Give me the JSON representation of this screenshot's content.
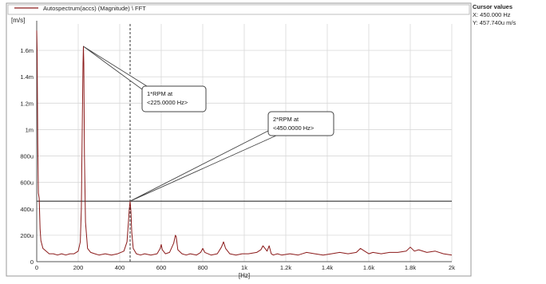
{
  "cursor_panel": {
    "title": "Cursor values",
    "x_readout": "X: 450.000 Hz",
    "y_readout": "Y: 457.740u m/s"
  },
  "chart_data": {
    "type": "line",
    "legend": {
      "label": "Autospectrum(accs) (Magnitude) \\ FFT",
      "placement": "top"
    },
    "xlabel": "[Hz]",
    "ylabel": "[m/s]",
    "xlim": [
      0,
      2000
    ],
    "ylim": [
      0,
      0.0018
    ],
    "grid": true,
    "x_ticks": [
      {
        "v": 0,
        "label": "0"
      },
      {
        "v": 200,
        "label": "200"
      },
      {
        "v": 400,
        "label": "400"
      },
      {
        "v": 600,
        "label": "600"
      },
      {
        "v": 800,
        "label": "800"
      },
      {
        "v": 1000,
        "label": "1k"
      },
      {
        "v": 1200,
        "label": "1.2k"
      },
      {
        "v": 1400,
        "label": "1.4k"
      },
      {
        "v": 1600,
        "label": "1.6k"
      },
      {
        "v": 1800,
        "label": "1.8k"
      },
      {
        "v": 2000,
        "label": "2k"
      }
    ],
    "y_ticks": [
      {
        "v": 0,
        "label": "0"
      },
      {
        "v": 0.0002,
        "label": "200u"
      },
      {
        "v": 0.0004,
        "label": "400u"
      },
      {
        "v": 0.0006,
        "label": "600u"
      },
      {
        "v": 0.0008,
        "label": "800u"
      },
      {
        "v": 0.001,
        "label": "1m"
      },
      {
        "v": 0.0012,
        "label": "1.2m"
      },
      {
        "v": 0.0014,
        "label": "1.4m"
      },
      {
        "v": 0.0016,
        "label": "1.6m"
      }
    ],
    "series": [
      {
        "color": "#8b1a1a",
        "x": [
          0,
          2,
          5,
          8,
          12,
          16,
          20,
          30,
          45,
          60,
          80,
          100,
          120,
          140,
          160,
          180,
          200,
          210,
          215,
          220,
          223,
          225,
          227,
          230,
          235,
          245,
          260,
          280,
          300,
          330,
          360,
          390,
          420,
          435,
          442,
          446,
          450,
          454,
          458,
          465,
          480,
          500,
          520,
          550,
          580,
          595,
          600,
          605,
          620,
          640,
          660,
          668,
          672,
          680,
          700,
          720,
          740,
          770,
          790,
          800,
          810,
          840,
          870,
          890,
          900,
          910,
          930,
          960,
          990,
          1020,
          1060,
          1080,
          1090,
          1100,
          1110,
          1120,
          1125,
          1130,
          1140,
          1160,
          1180,
          1220,
          1260,
          1300,
          1340,
          1380,
          1420,
          1460,
          1500,
          1540,
          1560,
          1580,
          1600,
          1620,
          1660,
          1700,
          1740,
          1780,
          1800,
          1820,
          1840,
          1880,
          1920,
          1960,
          2000
        ],
        "values": [
          0.00175,
          0.0016,
          0.0009,
          0.00052,
          0.00048,
          0.00025,
          0.00016,
          0.0001,
          8e-05,
          6e-05,
          6e-05,
          5e-05,
          6e-05,
          5e-05,
          6e-05,
          6e-05,
          8e-05,
          0.00015,
          0.0004,
          0.0011,
          0.0015,
          0.00163,
          0.0015,
          0.0008,
          0.0003,
          0.0001,
          7e-05,
          6e-05,
          5e-05,
          6e-05,
          5e-05,
          6e-05,
          8e-05,
          0.00015,
          0.0003,
          0.0004,
          0.000458,
          0.00038,
          0.00022,
          0.0001,
          6e-05,
          5e-05,
          6e-05,
          5e-05,
          6e-05,
          0.0001,
          0.00013,
          9e-05,
          6e-05,
          7e-05,
          0.00014,
          0.0002,
          0.00019,
          9e-05,
          6e-05,
          5e-05,
          6e-05,
          5e-05,
          7e-05,
          0.0001,
          7e-05,
          5e-05,
          6e-05,
          0.00011,
          0.00015,
          0.0001,
          6e-05,
          5e-05,
          6e-05,
          6e-05,
          7e-05,
          9e-05,
          0.00012,
          0.0001,
          8e-05,
          0.00012,
          9e-05,
          6e-05,
          5e-05,
          6e-05,
          5e-05,
          6e-05,
          5e-05,
          7e-05,
          6e-05,
          5e-05,
          6e-05,
          7e-05,
          6e-05,
          7e-05,
          0.0001,
          8e-05,
          6e-05,
          7e-05,
          6e-05,
          7e-05,
          7e-05,
          8e-05,
          0.00011,
          8e-05,
          9e-05,
          7e-05,
          8e-05,
          6e-05,
          5e-05
        ]
      }
    ],
    "cursor": {
      "x": 450,
      "y": 0.000458
    },
    "annotations": [
      {
        "lines": [
          "1*RPM  at",
          "<225.0000 Hz>"
        ],
        "target": {
          "x": 225,
          "y": 0.00163
        }
      },
      {
        "lines": [
          "2*RPM  at",
          "<450.0000 Hz>"
        ],
        "target": {
          "x": 450,
          "y": 0.000458
        }
      }
    ]
  }
}
